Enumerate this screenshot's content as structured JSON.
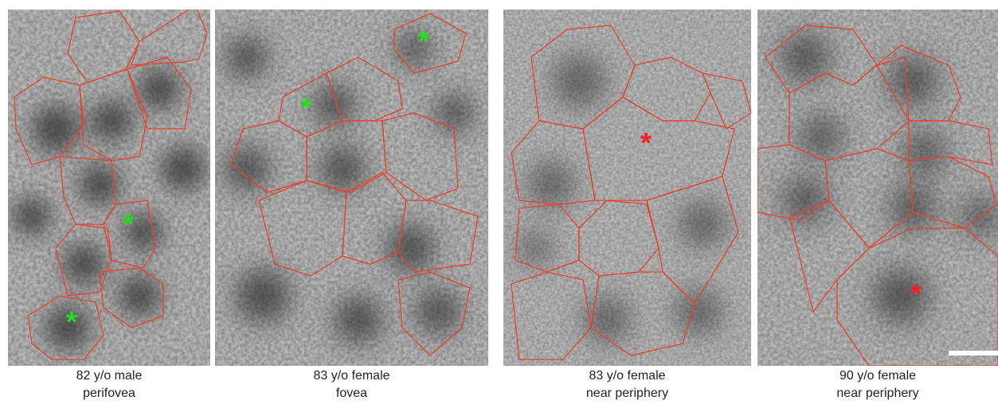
{
  "panels": [
    {
      "caption_line1": "82 y/o male",
      "caption_line2": "perifovea",
      "markers": [
        {
          "symbol": "*",
          "color": "#22dd22"
        },
        {
          "symbol": "*",
          "color": "#22dd22"
        }
      ]
    },
    {
      "caption_line1": "83 y/o female",
      "caption_line2": "fovea",
      "markers": [
        {
          "symbol": "*",
          "color": "#22dd22"
        },
        {
          "symbol": "*",
          "color": "#22dd22"
        }
      ]
    },
    {
      "caption_line1": "83 y/o female",
      "caption_line2": "near periphery",
      "markers": [
        {
          "symbol": "*",
          "color": "#ee2222"
        }
      ]
    },
    {
      "caption_line1": "90 y/o female",
      "caption_line2": "near periphery",
      "markers": [
        {
          "symbol": "*",
          "color": "#ee2222"
        }
      ]
    }
  ],
  "colors": {
    "outline": "#e8412c",
    "background": "#ffffff"
  }
}
